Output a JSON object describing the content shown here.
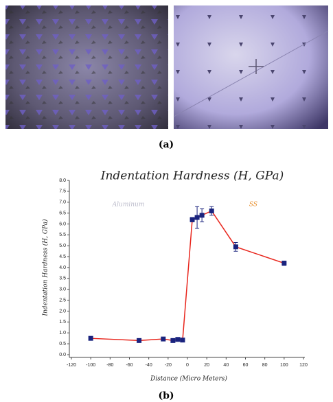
{
  "captions": [
    "(a)",
    "(b)"
  ],
  "chart_data": {
    "type": "line",
    "title": "Indentation Hardness (H, GPa)",
    "x_label": "Distance (Micro Meters)",
    "y_label": "Indentation Hardness (H, GPa)",
    "annotations": [
      "Aluminum",
      "SS"
    ],
    "x": [
      -100,
      -50,
      -25,
      -15,
      -10,
      -5,
      5,
      10,
      15,
      25,
      50,
      100
    ],
    "series": [
      {
        "color": "#e8251c",
        "marker_color": "#1a237e",
        "values": [
          0.75,
          0.65,
          0.72,
          0.65,
          0.7,
          0.67,
          6.2,
          6.3,
          6.4,
          6.6,
          4.95,
          4.2
        ],
        "errors": [
          0.05,
          0.05,
          0.05,
          0.05,
          0.05,
          0.05,
          0.1,
          0.5,
          0.3,
          0.2,
          0.2,
          0.1
        ]
      }
    ],
    "xlim": [
      -120,
      120
    ],
    "xticks": [
      -120,
      -100,
      -80,
      -60,
      -40,
      -20,
      0,
      20,
      40,
      60,
      80,
      100,
      120
    ],
    "ylim": [
      0,
      8
    ],
    "yticks": [
      {
        "value": 0,
        "label": "0.0"
      },
      0.5,
      {
        "value": 1,
        "label": "1.0"
      },
      1.5,
      {
        "value": 2,
        "label": "2.0"
      },
      2.5,
      {
        "value": 3,
        "label": "3.0"
      },
      3.5,
      {
        "value": 4,
        "label": "4.0"
      },
      4.5,
      {
        "value": 5,
        "label": "5.0"
      },
      5.5,
      {
        "value": 6,
        "label": "6.0"
      },
      6.5,
      {
        "value": 7,
        "label": "7.0"
      },
      7.5,
      {
        "value": 8,
        "label": "8.0"
      }
    ]
  }
}
